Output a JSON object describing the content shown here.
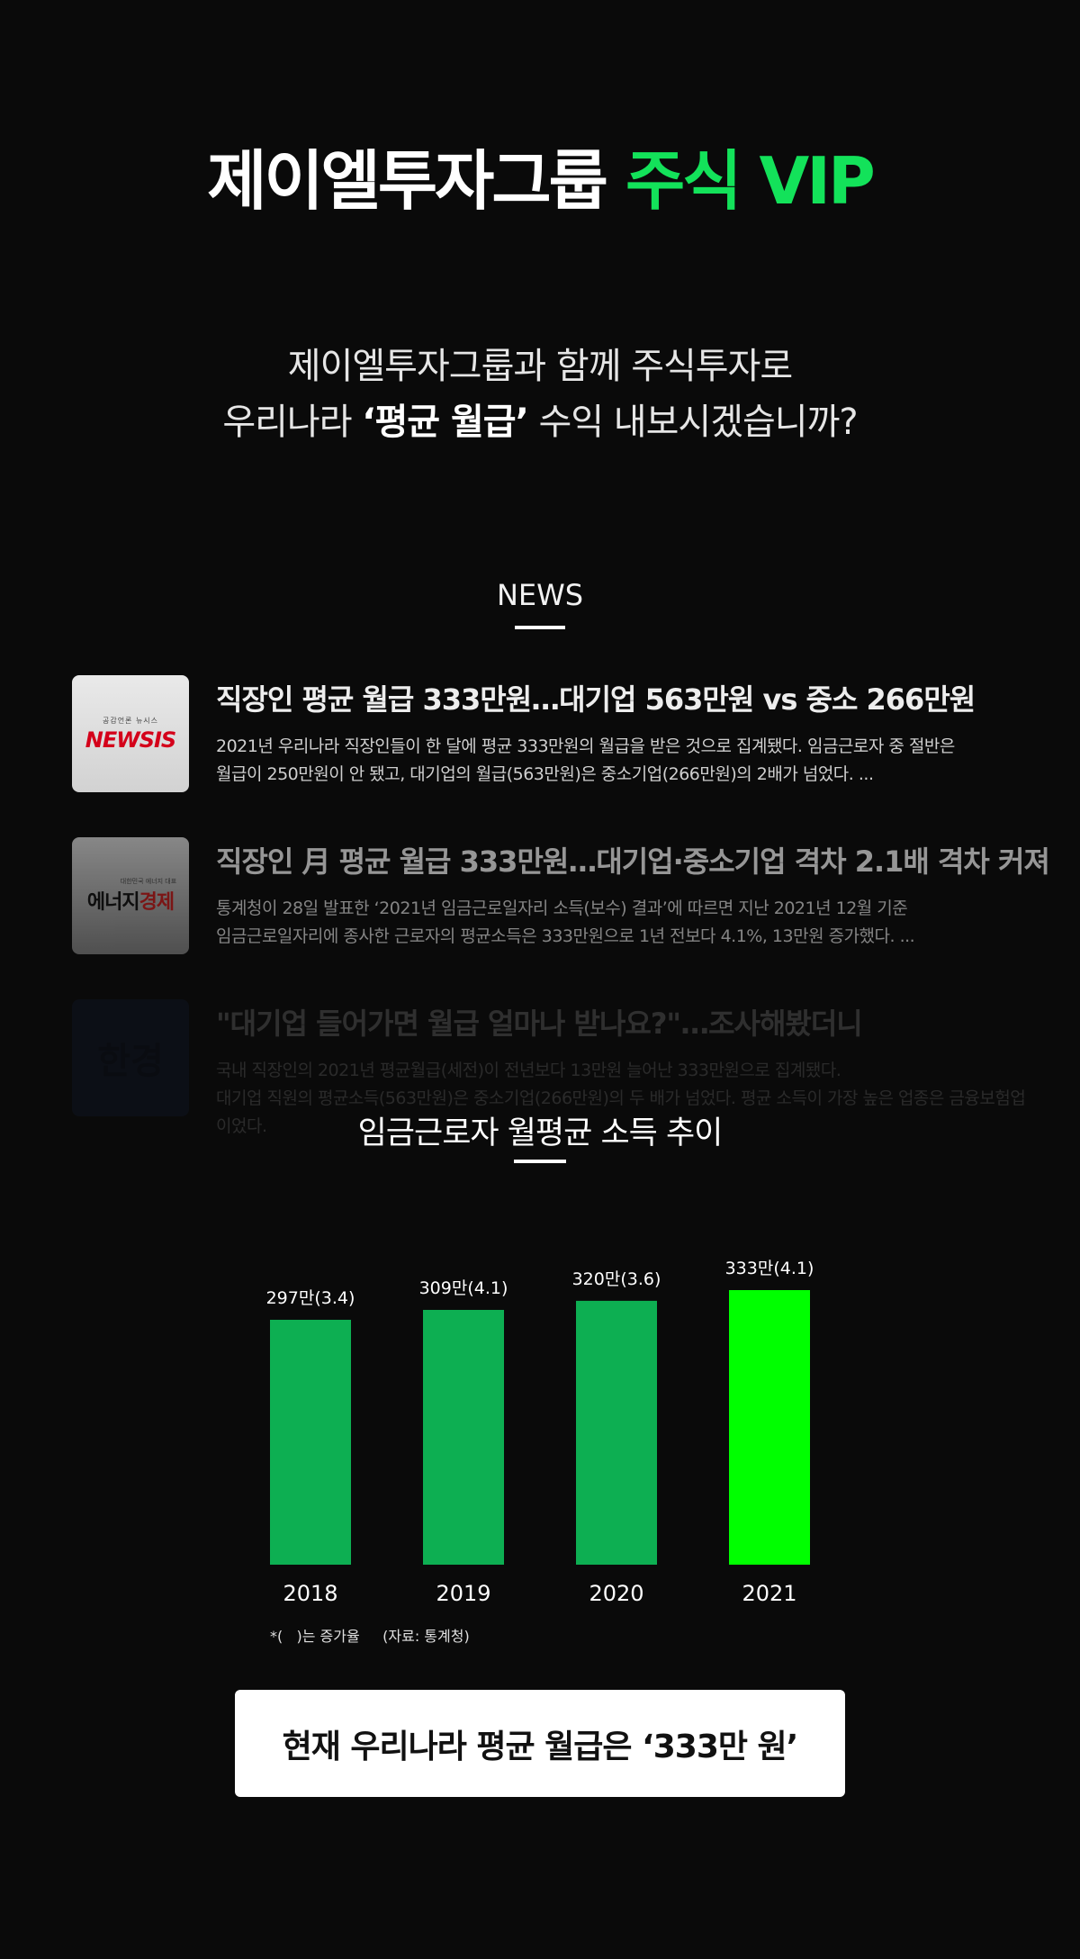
{
  "hero": {
    "title_main": "제이엘투자그룹 ",
    "title_accent": "주식 VIP"
  },
  "subtitle": {
    "line1": "제이엘투자그룹과 함께 주식투자로",
    "line2_pre": "우리나라 ",
    "line2_bold": "‘평균 월급’",
    "line2_post": " 수익 내보시겠습니까?"
  },
  "news": {
    "heading": "NEWS",
    "items": [
      {
        "source_logo_small": "공감언론 뉴시스",
        "source_logo": "NEWSIS",
        "title": "직장인 평균 월급 333만원…대기업 563만원 vs 중소 266만원",
        "desc_line1": "2021년 우리나라 직장인들이 한 달에 평균 333만원의 월급을 받은 것으로 집계됐다. 임금근로자 중 절반은",
        "desc_line2": "월급이 250만원이 안 됐고, 대기업의 월급(563만원)은 중소기업(266만원)의 2배가 넘었다. ..."
      },
      {
        "source_logo_small": "대한민국 에너지 대표",
        "source_logo_a": "에너지",
        "source_logo_b": "경제",
        "title": "직장인 月 평균 월급 333만원…대기업·중소기업 격차 2.1배 격차 커져",
        "desc_line1": "통계청이 28일 발표한 ‘2021년 임금근로일자리 소득(보수) 결과’에 따르면 지난 2021년 12월 기준",
        "desc_line2": "임금근로일자리에 종사한 근로자의 평균소득은 333만원으로 1년 전보다 4.1%, 13만원 증가했다. ..."
      },
      {
        "source_logo": "한경",
        "title": "\"대기업 들어가면 월급 얼마나 받나요?\"…조사해봤더니",
        "desc_line1": "국내 직장인의 2021년 평균월급(세전)이 전년보다 13만원 늘어난 333만원으로 집계됐다.",
        "desc_line2": "대기업 직원의 평균소득(563만원)은 중소기업(266만원)의 두 배가 넘었다. 평균 소득이 가장 높은 업종은 금융보험업이었다."
      }
    ]
  },
  "chart_data": {
    "type": "bar",
    "title": "임금근로자 월평균 소득 추이",
    "categories": [
      "2018",
      "2019",
      "2020",
      "2021"
    ],
    "values": [
      297,
      309,
      320,
      333
    ],
    "data_labels": [
      "297만(3.4)",
      "309만(4.1)",
      "320만(3.6)",
      "333만(4.1)"
    ],
    "colors": [
      "#0daf52",
      "#0daf52",
      "#0daf52",
      "#00ff00"
    ],
    "note": "*(   )는 증가율     (자료: 통계청)"
  },
  "cta": {
    "text": "현재 우리나라 평균 월급은 ‘333만 원’"
  }
}
